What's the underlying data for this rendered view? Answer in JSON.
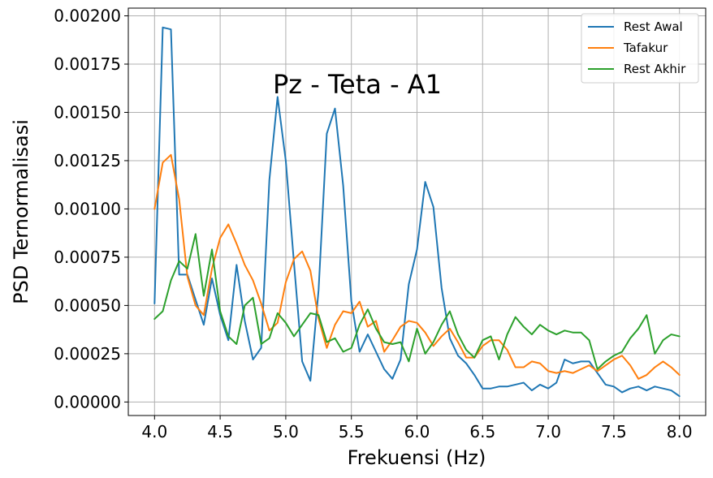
{
  "chart_data": {
    "type": "line",
    "title": "Pz - Teta - A1",
    "xlabel": "Frekuensi (Hz)",
    "ylabel": "PSD Ternormalisasi",
    "xlim": [
      3.8,
      8.2
    ],
    "ylim": [
      -7e-05,
      0.00204
    ],
    "xticks": [
      4.0,
      4.5,
      5.0,
      5.5,
      6.0,
      6.5,
      7.0,
      7.5,
      8.0
    ],
    "xtick_labels": [
      "4.0",
      "4.5",
      "5.0",
      "5.5",
      "6.0",
      "6.5",
      "7.0",
      "7.5",
      "8.0"
    ],
    "yticks": [
      0,
      0.00025,
      0.0005,
      0.00075,
      0.001,
      0.00125,
      0.0015,
      0.00175,
      0.002
    ],
    "ytick_labels": [
      "0.00000",
      "0.00025",
      "0.00050",
      "0.00075",
      "0.00100",
      "0.00125",
      "0.00150",
      "0.00175",
      "0.00200"
    ],
    "grid": true,
    "legend_position": "top-right",
    "x": [
      4.0,
      4.0625,
      4.125,
      4.1875,
      4.25,
      4.3125,
      4.375,
      4.4375,
      4.5,
      4.5625,
      4.625,
      4.6875,
      4.75,
      4.8125,
      4.875,
      4.9375,
      5.0,
      5.0625,
      5.125,
      5.1875,
      5.25,
      5.3125,
      5.375,
      5.4375,
      5.5,
      5.5625,
      5.625,
      5.6875,
      5.75,
      5.8125,
      5.875,
      5.9375,
      6.0,
      6.0625,
      6.125,
      6.1875,
      6.25,
      6.3125,
      6.375,
      6.4375,
      6.5,
      6.5625,
      6.625,
      6.6875,
      6.75,
      6.8125,
      6.875,
      6.9375,
      7.0,
      7.0625,
      7.125,
      7.1875,
      7.25,
      7.3125,
      7.375,
      7.4375,
      7.5,
      7.5625,
      7.625,
      7.6875,
      7.75,
      7.8125,
      7.875,
      7.9375,
      8.0
    ],
    "series": [
      {
        "name": "Rest Awal",
        "color": "#1f77b4",
        "values": [
          0.00051,
          0.00194,
          0.00193,
          0.00066,
          0.00066,
          0.00053,
          0.0004,
          0.00064,
          0.00045,
          0.00032,
          0.00071,
          0.00042,
          0.00022,
          0.00028,
          0.00115,
          0.00158,
          0.00125,
          0.00072,
          0.00021,
          0.00011,
          0.00058,
          0.00139,
          0.00152,
          0.00112,
          0.00052,
          0.00026,
          0.00035,
          0.00026,
          0.00017,
          0.00012,
          0.00022,
          0.00061,
          0.00079,
          0.00114,
          0.00101,
          0.00059,
          0.00033,
          0.00024,
          0.0002,
          0.00014,
          7e-05,
          7e-05,
          8e-05,
          8e-05,
          9e-05,
          0.0001,
          6e-05,
          9e-05,
          7e-05,
          0.0001,
          0.00022,
          0.0002,
          0.00021,
          0.00021,
          0.00015,
          9e-05,
          8e-05,
          5e-05,
          7e-05,
          8e-05,
          6e-05,
          8e-05,
          7e-05,
          6e-05,
          3e-05
        ]
      },
      {
        "name": "Tafakur",
        "color": "#ff7f0e",
        "values": [
          0.001,
          0.00124,
          0.00128,
          0.00105,
          0.00065,
          0.0005,
          0.00045,
          0.00069,
          0.00085,
          0.00092,
          0.00082,
          0.00071,
          0.00063,
          0.00051,
          0.00037,
          0.00041,
          0.00062,
          0.00074,
          0.00078,
          0.00068,
          0.00043,
          0.00028,
          0.0004,
          0.00047,
          0.00046,
          0.00052,
          0.00039,
          0.00042,
          0.00026,
          0.00032,
          0.00039,
          0.00042,
          0.00041,
          0.00036,
          0.00029,
          0.00034,
          0.00038,
          0.00031,
          0.00023,
          0.00023,
          0.00029,
          0.00032,
          0.00032,
          0.00027,
          0.00018,
          0.00018,
          0.00021,
          0.0002,
          0.00016,
          0.00015,
          0.00016,
          0.00015,
          0.00017,
          0.00019,
          0.00016,
          0.00019,
          0.00022,
          0.00024,
          0.00019,
          0.00012,
          0.00014,
          0.00018,
          0.00021,
          0.00018,
          0.00014
        ]
      },
      {
        "name": "Rest Akhir",
        "color": "#2ca02c",
        "values": [
          0.00043,
          0.00047,
          0.00063,
          0.00073,
          0.00069,
          0.00087,
          0.00055,
          0.00079,
          0.00047,
          0.00034,
          0.0003,
          0.0005,
          0.00054,
          0.0003,
          0.00033,
          0.00046,
          0.00041,
          0.00034,
          0.0004,
          0.00046,
          0.00045,
          0.00031,
          0.00033,
          0.00026,
          0.00028,
          0.0004,
          0.00048,
          0.00038,
          0.00031,
          0.0003,
          0.00031,
          0.00021,
          0.00038,
          0.00025,
          0.00031,
          0.0004,
          0.00047,
          0.00035,
          0.00027,
          0.00023,
          0.00032,
          0.00034,
          0.00022,
          0.00035,
          0.00044,
          0.00039,
          0.00035,
          0.0004,
          0.00037,
          0.00035,
          0.00037,
          0.00036,
          0.00036,
          0.00032,
          0.00017,
          0.00021,
          0.00024,
          0.00026,
          0.00033,
          0.00038,
          0.00045,
          0.00025,
          0.00032,
          0.00035,
          0.00034
        ]
      }
    ]
  }
}
